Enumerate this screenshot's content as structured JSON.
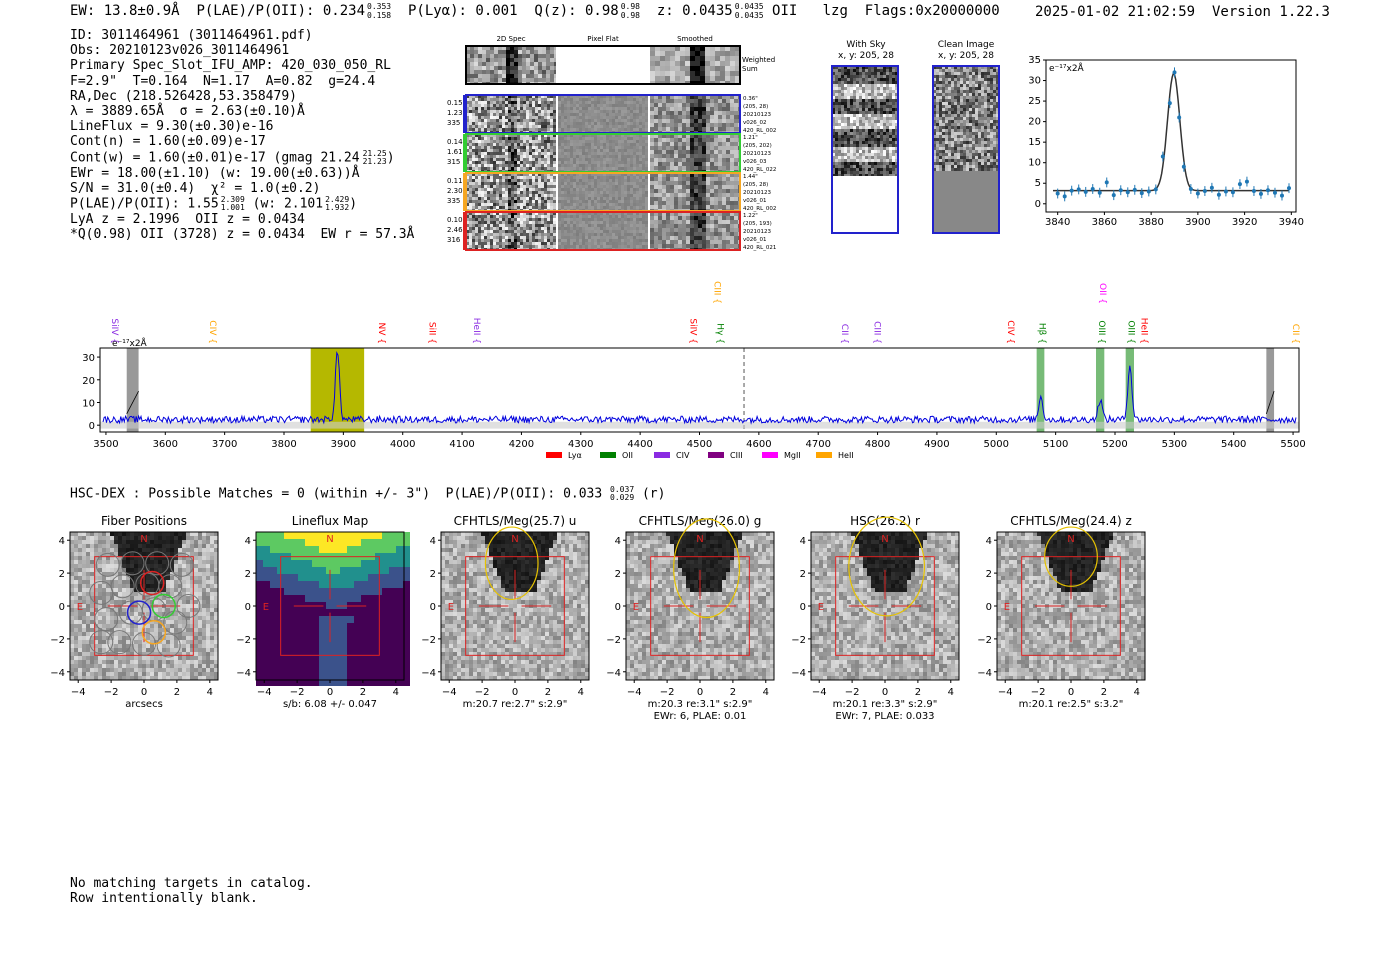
{
  "header": {
    "ew": "EW: 13.8±0.9Å",
    "plae_poii": "P(LAE)/P(OII): 0.234",
    "plae_hi": "0.353",
    "plae_lo": "0.158",
    "plya": "P(Lyα): 0.001",
    "qz": "Q(z): 0.98",
    "qz_hi": "0.98",
    "qz_lo": "0.98",
    "z": "z: 0.0435",
    "z_hi": "0.0435",
    "z_lo": "0.0435",
    "line": "OII",
    "lzg": "lzg",
    "flags": "Flags:0x20000000",
    "datetime": "2025-01-02 21:02:59",
    "version": "Version 1.22.3"
  },
  "info": [
    "ID: 3011464961 (3011464961.pdf)",
    "Obs: 20210123v026_3011464961",
    "Primary Spec_Slot_IFU_AMP: 420_030_050_RL",
    "F=2.9\"  T=0.164  N=1.17  A=0.82  g=24.4",
    "RA,Dec (218.526428,53.358479)",
    "λ = 3889.65Å  σ = 2.63(±0.10)Å",
    "LineFlux = 9.30(±0.30)e-16",
    "Cont(n) = 1.60(±0.09)e-17",
    "Cont(w) = 1.60(±0.01)e-17 (gmag 21.24",
    "EWr = 18.00(±1.10) (w: 19.00(±0.63))Å",
    "S/N = 31.0(±0.4)  χ² = 1.0(±0.2)",
    "P(LAE)/P(OII): 1.55",
    "LyA z = 2.1996  OII z = 0.0434",
    "*Q(0.98) OII (3728) z = 0.0434  EW r = 57.3Å"
  ],
  "info_extra": {
    "gmag_hi": "21.25",
    "gmag_lo": "21.23",
    "plae2_hi": "2.309",
    "plae2_lo": "1.001",
    "plae2_w": "(w: 2.101",
    "plae2_w_hi": "2.429",
    "plae2_w_lo": "1.932"
  },
  "cutouts": {
    "col_titles": [
      "2D Spec",
      "Pixel Flat",
      "Smoothed"
    ],
    "weighted_label": "Weighted Sum",
    "fibers": [
      {
        "color": "#2222cc",
        "left": [
          "0.15",
          "1.23",
          "335"
        ],
        "right": [
          "0.36\"",
          "(205, 28)",
          "20210123",
          "v026_02",
          "420_RL_002"
        ]
      },
      {
        "color": "#33cc33",
        "left": [
          "0.14",
          "1.61",
          "315"
        ],
        "right": [
          "1.21\"",
          "(205, 202)",
          "20210123",
          "v026_03",
          "420_RL_022"
        ]
      },
      {
        "color": "#f5a623",
        "left": [
          "0.11",
          "2.30",
          "335"
        ],
        "right": [
          "1.44\"",
          "(205, 28)",
          "20210123",
          "v026_01",
          "420_RL_002"
        ]
      },
      {
        "color": "#dd2222",
        "left": [
          "0.10",
          "2.46",
          "316"
        ],
        "right": [
          "1.22\"",
          "(205, 193)",
          "20210123",
          "v026_01",
          "420_RL_021"
        ]
      }
    ],
    "with_sky_title": "With Sky",
    "with_sky_sub": "x, y: 205, 28",
    "clean_title": "Clean Image",
    "clean_sub": "x, y: 205, 28"
  },
  "zoom_chart": {
    "unit_label": "e⁻¹⁷x2Å"
  },
  "spectrum_chart": {
    "unit_label": "e⁻¹⁷x2Å",
    "legend": [
      {
        "name": "Lyα",
        "color": "#ff0000"
      },
      {
        "name": "OII",
        "color": "#008000"
      },
      {
        "name": "CIV",
        "color": "#8a2be2"
      },
      {
        "name": "CIII",
        "color": "#800080"
      },
      {
        "name": "MgII",
        "color": "#ff00ff"
      },
      {
        "name": "HeII",
        "color": "#ffa500"
      }
    ],
    "line_labels": [
      {
        "name": "SiIV",
        "w": 3510,
        "color": "#8a2be2",
        "row": 0
      },
      {
        "name": "CIV",
        "w": 3675,
        "color": "#ffa500",
        "row": 0
      },
      {
        "name": "NV",
        "w": 3960,
        "color": "#ff0000",
        "row": 0
      },
      {
        "name": "SiII",
        "w": 4045,
        "color": "#ff0000",
        "row": 0
      },
      {
        "name": "HeII",
        "w": 4120,
        "color": "#8a2be2",
        "row": 0
      },
      {
        "name": "SiIV",
        "w": 4485,
        "color": "#ff0000",
        "row": 0
      },
      {
        "name": "CIII",
        "w": 4525,
        "color": "#ffa500",
        "row": 1
      },
      {
        "name": "Hγ",
        "w": 4530,
        "color": "#008000",
        "row": 0
      },
      {
        "name": "CII",
        "w": 4740,
        "color": "#8a2be2",
        "row": 0
      },
      {
        "name": "CIII",
        "w": 4795,
        "color": "#8a2be2",
        "row": 0
      },
      {
        "name": "CIV",
        "w": 5020,
        "color": "#ff0000",
        "row": 0
      },
      {
        "name": "Hβ",
        "w": 5073,
        "color": "#008000",
        "row": 0
      },
      {
        "name": "OII",
        "w": 5175,
        "color": "#ff00ff",
        "row": 1
      },
      {
        "name": "OIII",
        "w": 5173,
        "color": "#008000",
        "row": 0
      },
      {
        "name": "OIII",
        "w": 5223,
        "color": "#008000",
        "row": 0
      },
      {
        "name": "HeII",
        "w": 5245,
        "color": "#ff0000",
        "row": 0
      },
      {
        "name": "CII",
        "w": 5500,
        "color": "#ffa500",
        "row": 0
      }
    ]
  },
  "hsc_line": {
    "text": "HSC-DEX : Possible Matches = 0 (within +/- 3\")  P(LAE)/P(OII): 0.033",
    "hi": "0.037",
    "lo": "0.029",
    "band": "(r)"
  },
  "image_panels": [
    {
      "title": "Fiber Positions",
      "cap1": "arcsecs",
      "cap2": "",
      "type": "fiber"
    },
    {
      "title": "Lineflux Map",
      "cap1": "s/b: 6.08 +/- 0.047",
      "cap2": "",
      "type": "flux"
    },
    {
      "title": "CFHTLS/Meg(25.7) u",
      "cap1": "m:20.7  re:2.7\"  s:2.9\"",
      "cap2": "",
      "type": "img",
      "ell": [
        -0.2,
        2.6,
        1.6,
        2.2
      ]
    },
    {
      "title": "CFHTLS/Meg(26.0) g",
      "cap1": "m:20.3  re:3.1\"  s:2.9\"",
      "cap2": "EWr: 6, PLAE: 0.01",
      "type": "img",
      "ell": [
        0.4,
        2.3,
        2.0,
        3.0
      ]
    },
    {
      "title": "HSC(26.2) r",
      "cap1": "m:20.1  re:3.3\"  s:2.9\"",
      "cap2": "EWr: 7, PLAE: 0.033",
      "type": "img",
      "ell": [
        0.1,
        2.4,
        2.3,
        3.0
      ]
    },
    {
      "title": "CFHTLS/Meg(24.4) z",
      "cap1": "m:20.1  re:2.5\"  s:3.2\"",
      "cap2": "",
      "type": "img",
      "ell": [
        0.0,
        3.0,
        1.6,
        1.8
      ]
    }
  ],
  "compass": {
    "north": "N",
    "east": "E"
  },
  "footer": [
    "No matching targets in catalog.",
    "Row intentionally blank."
  ],
  "chart_data": [
    {
      "type": "scatter",
      "title": "",
      "xlabel": "",
      "ylabel": "e⁻¹⁷x2Å",
      "xlim": [
        3835,
        3942
      ],
      "ylim": [
        -2,
        35
      ],
      "xticks": [
        3840,
        3860,
        3880,
        3900,
        3920,
        3940
      ],
      "yticks": [
        0,
        5,
        10,
        15,
        20,
        25,
        30,
        35
      ],
      "series": [
        {
          "x": [
            3840,
            3843,
            3846,
            3849,
            3852,
            3855,
            3858,
            3861,
            3864,
            3867,
            3870,
            3873,
            3876,
            3879,
            3882,
            3885,
            3888,
            3890,
            3892,
            3894,
            3897,
            3900,
            3903,
            3906,
            3909,
            3912,
            3915,
            3918,
            3921,
            3924,
            3927,
            3930,
            3933,
            3936,
            3939
          ],
          "y": [
            2.5,
            1.8,
            3.2,
            3.5,
            2.9,
            3.6,
            2.7,
            5.2,
            2.1,
            3.3,
            2.8,
            3.4,
            2.6,
            3.0,
            3.5,
            11.5,
            24.5,
            32.0,
            21.0,
            9.0,
            3.6,
            2.5,
            3.1,
            3.9,
            2.2,
            3.0,
            2.8,
            4.8,
            5.4,
            3.1,
            2.4,
            3.3,
            2.7,
            2.0,
            3.8
          ]
        }
      ],
      "fit": {
        "center": 3889.65,
        "sigma": 2.63,
        "amp": 28.5,
        "cont": 3.2
      }
    },
    {
      "type": "line",
      "title": "",
      "xlabel": "",
      "ylabel": "e⁻¹⁷x2Å",
      "xlim": [
        3490,
        5510
      ],
      "ylim": [
        -3,
        34
      ],
      "xticks": [
        3500,
        3600,
        3700,
        3800,
        3900,
        4000,
        4100,
        4200,
        4300,
        4400,
        4500,
        4600,
        4700,
        4800,
        4900,
        5000,
        5100,
        5200,
        5300,
        5400,
        5500
      ],
      "yticks": [
        0,
        10,
        20,
        30
      ],
      "features": [
        {
          "w": 3890,
          "peak": 30,
          "width": 3.5
        },
        {
          "w": 5075,
          "peak": 10,
          "width": 3.5
        },
        {
          "w": 5175,
          "peak": 9,
          "width": 3.5
        },
        {
          "w": 5225,
          "peak": 24,
          "width": 3.5
        }
      ],
      "baseline": 2.5,
      "noise": 1.5,
      "highlight_band": [
        3845,
        3935
      ],
      "green_bands": [
        [
          5068,
          5081
        ],
        [
          5168,
          5182
        ],
        [
          5218,
          5232
        ]
      ],
      "hatched_bands": [
        [
          3535,
          3555
        ],
        [
          5455,
          5468
        ]
      ],
      "dashed_line": 4575
    }
  ]
}
